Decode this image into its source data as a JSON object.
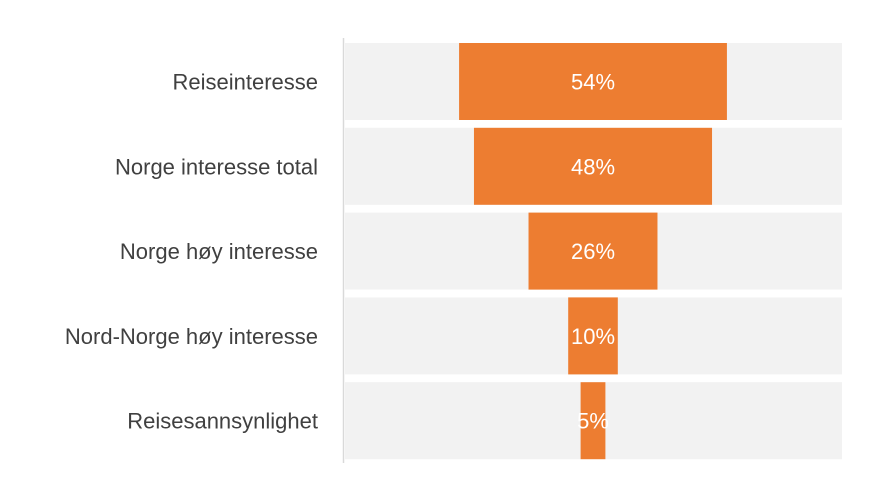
{
  "colors": {
    "bar": "#ED7D31",
    "track": "#F2F2F2",
    "axis": "#D9D9D9",
    "label": "#404040",
    "value_label": "#FFFFFF"
  },
  "chart_data": {
    "type": "bar",
    "orientation": "horizontal-funnel",
    "categories": [
      "Reiseinteresse",
      "Norge interesse total",
      "Norge høy interesse",
      "Nord-Norge høy interesse",
      "Reisesannsynlighet"
    ],
    "values": [
      54,
      48,
      26,
      10,
      5
    ],
    "value_labels": [
      "54%",
      "48%",
      "26%",
      "10%",
      "5%"
    ],
    "unit": "%",
    "xlim": [
      0,
      100
    ],
    "grid": false,
    "legend": "none"
  }
}
